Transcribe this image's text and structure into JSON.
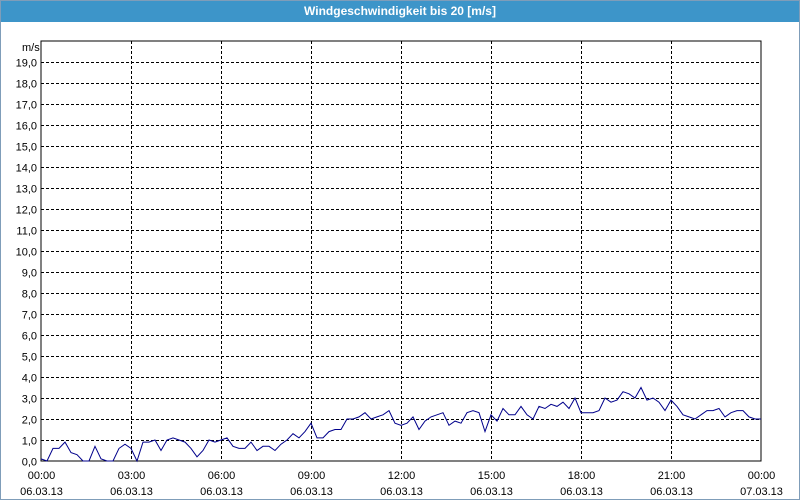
{
  "window": {
    "title": "Windgeschwindigkeit bis 20 [m/s]"
  },
  "colors": {
    "title_bg": "#3d95c9",
    "series": "#00008b",
    "grid": "#000000"
  },
  "chart_data": {
    "type": "line",
    "title": "Windgeschwindigkeit bis 20 [m/s]",
    "ylabel": "m/s",
    "ylim": [
      0,
      20
    ],
    "y_ticks": [
      "0,0",
      "1,0",
      "2,0",
      "3,0",
      "4,0",
      "5,0",
      "6,0",
      "7,0",
      "8,0",
      "9,0",
      "10,0",
      "11,0",
      "12,0",
      "13,0",
      "14,0",
      "15,0",
      "16,0",
      "17,0",
      "18,0",
      "19,0"
    ],
    "x_ticks": [
      {
        "time": "00:00",
        "date": "06.03.13"
      },
      {
        "time": "03:00",
        "date": "06.03.13"
      },
      {
        "time": "06:00",
        "date": "06.03.13"
      },
      {
        "time": "09:00",
        "date": "06.03.13"
      },
      {
        "time": "12:00",
        "date": "06.03.13"
      },
      {
        "time": "15:00",
        "date": "06.03.13"
      },
      {
        "time": "18:00",
        "date": "06.03.13"
      },
      {
        "time": "21:00",
        "date": "06.03.13"
      },
      {
        "time": "00:00",
        "date": "07.03.13"
      }
    ],
    "xlim_hours": [
      0,
      24
    ],
    "grid": true,
    "series": [
      {
        "x": [
          0,
          0.2,
          0.4,
          0.6,
          0.8,
          1.0,
          1.2,
          1.4,
          1.6,
          1.8,
          2.0,
          2.2,
          2.4,
          2.6,
          2.8,
          3.0,
          3.2,
          3.4,
          3.6,
          3.8,
          4.0,
          4.2,
          4.4,
          4.6,
          4.8,
          5.0,
          5.2,
          5.4,
          5.6,
          5.8,
          6.0,
          6.2,
          6.4,
          6.6,
          6.8,
          7.0,
          7.2,
          7.4,
          7.6,
          7.8,
          8.0,
          8.2,
          8.4,
          8.6,
          8.8,
          9.0,
          9.2,
          9.4,
          9.6,
          9.8,
          10.0,
          10.2,
          10.4,
          10.6,
          10.8,
          11.0,
          11.2,
          11.4,
          11.6,
          11.8,
          12.0,
          12.2,
          12.4,
          12.6,
          12.8,
          13.0,
          13.2,
          13.4,
          13.6,
          13.8,
          14.0,
          14.2,
          14.4,
          14.6,
          14.8,
          15.0,
          15.2,
          15.4,
          15.6,
          15.8,
          16.0,
          16.2,
          16.4,
          16.6,
          16.8,
          17.0,
          17.2,
          17.4,
          17.6,
          17.8,
          18.0,
          18.2,
          18.4,
          18.6,
          18.8,
          19.0,
          19.2,
          19.4,
          19.6,
          19.8,
          20.0,
          20.2,
          20.4,
          20.6,
          20.8,
          21.0,
          21.2,
          21.4,
          21.6,
          21.8,
          22.0,
          22.2,
          22.4,
          22.6,
          22.8,
          23.0,
          23.2,
          23.4,
          23.6,
          23.8,
          24.0
        ],
        "values": [
          0.1,
          0.0,
          0.6,
          0.6,
          0.9,
          0.4,
          0.3,
          0.0,
          0.0,
          0.7,
          0.1,
          0.0,
          0.0,
          0.6,
          0.8,
          0.6,
          0.0,
          0.9,
          0.9,
          1.0,
          0.5,
          1.0,
          1.1,
          1.0,
          0.9,
          0.6,
          0.2,
          0.5,
          1.0,
          0.9,
          1.0,
          1.1,
          0.7,
          0.6,
          0.6,
          0.9,
          0.5,
          0.7,
          0.7,
          0.5,
          0.8,
          1.0,
          1.3,
          1.1,
          1.4,
          1.8,
          1.1,
          1.1,
          1.4,
          1.5,
          1.5,
          2.0,
          2.0,
          2.1,
          2.3,
          2.0,
          2.1,
          2.2,
          2.4,
          1.8,
          1.7,
          1.8,
          2.1,
          1.5,
          1.9,
          2.1,
          2.2,
          2.3,
          1.7,
          1.9,
          1.8,
          2.3,
          2.4,
          2.3,
          1.4,
          2.2,
          1.9,
          2.5,
          2.2,
          2.2,
          2.6,
          2.2,
          2.0,
          2.6,
          2.5,
          2.7,
          2.6,
          2.8,
          2.5,
          3.0,
          2.3,
          2.3,
          2.3,
          2.4,
          3.0,
          2.8,
          2.9,
          3.3,
          3.2,
          3.0,
          3.5,
          2.9,
          3.0,
          2.8,
          2.4,
          2.9,
          2.6,
          2.2,
          2.1,
          2.0,
          2.2,
          2.4,
          2.4,
          2.5,
          2.1,
          2.3,
          2.4,
          2.4,
          2.1,
          2.0,
          2.0
        ]
      }
    ]
  }
}
